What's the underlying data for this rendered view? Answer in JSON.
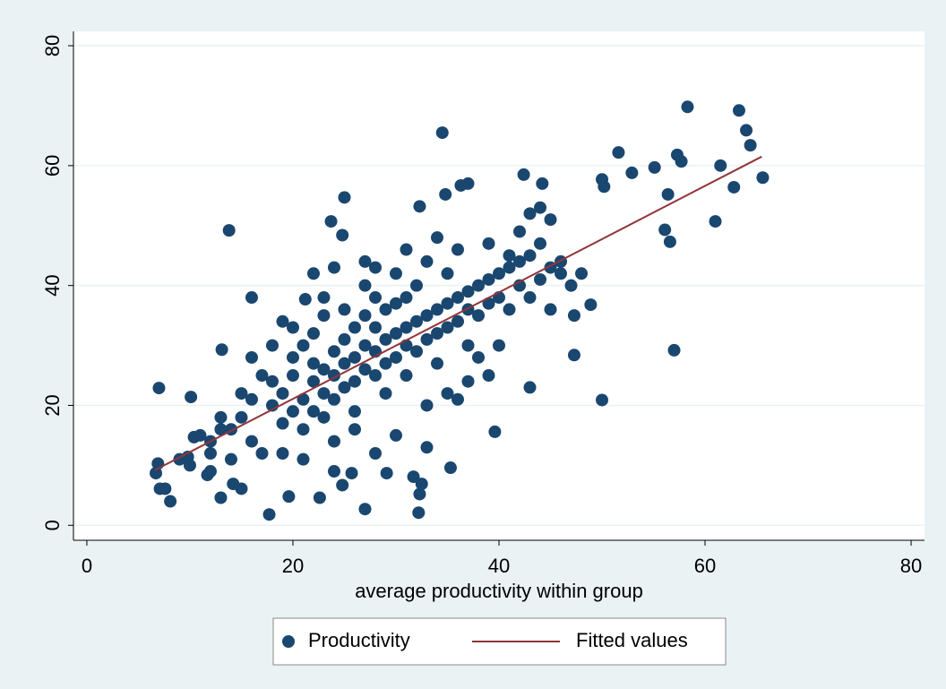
{
  "chart_data": {
    "type": "scatter",
    "xlabel": "average productivity within group",
    "xlim": [
      -1.3,
      81.3
    ],
    "ylim": [
      -2.5,
      82.4
    ],
    "xticks": [
      0,
      20,
      40,
      60,
      80
    ],
    "yticks": [
      0,
      20,
      40,
      60,
      80
    ],
    "grid": true,
    "legend": "bottom",
    "series": [
      {
        "name": "Productivity",
        "color": "#1a476f",
        "x": [
          7.0,
          6.9,
          6.7,
          7.1,
          7.6,
          8.1,
          13.8,
          34.5,
          58.3,
          63.3,
          64,
          64.4,
          65.6,
          61.5,
          62.8,
          61,
          57,
          50,
          51.6,
          52.9,
          57.3,
          57.7,
          55.1,
          56.4,
          56.1,
          56.6,
          50,
          50.2,
          48.9,
          47.3,
          47.3,
          43,
          39.6,
          35.3,
          32.2,
          27,
          19.6,
          17.7,
          25,
          23.7,
          24.8,
          32.3,
          34.8,
          36.3,
          37,
          42.4,
          44.2,
          16,
          21.2,
          13.1,
          10.1,
          9.8,
          10.4,
          13,
          15,
          11.7,
          14.2,
          22.6,
          24.8,
          25.7,
          29.1,
          32.5,
          32.3,
          31.7,
          18,
          18,
          19,
          19,
          20,
          20,
          20,
          21,
          21,
          21,
          22,
          22,
          22,
          22,
          23,
          23,
          23,
          23,
          24,
          24,
          24,
          24,
          25,
          25,
          25,
          25,
          26,
          26,
          26,
          26,
          27,
          27,
          27,
          27,
          28,
          28,
          28,
          28,
          29,
          29,
          29,
          29,
          30,
          30,
          30,
          30,
          31,
          31,
          31,
          31,
          32,
          32,
          32,
          33,
          33,
          33,
          34,
          34,
          34,
          35,
          35,
          35,
          36,
          36,
          37,
          37,
          37,
          38,
          38,
          39,
          39,
          40,
          40,
          41,
          41,
          42,
          42,
          43,
          43,
          44,
          44,
          45,
          45,
          46,
          46,
          47,
          48,
          15,
          16,
          16,
          17,
          17,
          14,
          13,
          12,
          11,
          10,
          9,
          12,
          14,
          19,
          21,
          24,
          28,
          30,
          26,
          33,
          35,
          36,
          37,
          33,
          38,
          39,
          40,
          22,
          24,
          28,
          31,
          34,
          36,
          39,
          42,
          43,
          44,
          45,
          41,
          19,
          20,
          18,
          23,
          27,
          15,
          16,
          12,
          13
        ],
        "values": [
          22.9,
          10.3,
          8.7,
          6.1,
          6.1,
          4.0,
          49.2,
          65.5,
          69.8,
          69.2,
          65.9,
          63.4,
          58.0,
          60.0,
          56.4,
          50.7,
          29.2,
          20.9,
          62.2,
          58.8,
          61.8,
          60.7,
          59.7,
          55.2,
          49.3,
          47.3,
          57.7,
          56.5,
          36.8,
          35,
          28.4,
          23,
          15.6,
          9.6,
          2.1,
          2.7,
          4.8,
          1.8,
          54.7,
          50.7,
          48.4,
          53.2,
          55.2,
          56.7,
          57,
          58.5,
          57,
          38,
          37.7,
          29.3,
          21.4,
          11.4,
          14.7,
          4.6,
          6.1,
          8.4,
          6.9,
          4.6,
          6.7,
          8.7,
          8.7,
          6.9,
          5.2,
          8.1,
          20,
          24,
          17,
          22,
          19,
          25,
          28,
          21,
          16,
          30,
          24,
          19,
          27,
          32,
          22,
          26,
          18,
          35,
          25,
          29,
          21,
          14,
          27,
          31,
          23,
          36,
          28,
          33,
          24,
          19,
          30,
          35,
          26,
          40,
          29,
          33,
          25,
          38,
          31,
          36,
          27,
          22,
          32,
          37,
          28,
          42,
          33,
          30,
          38,
          25,
          34,
          29,
          40,
          35,
          31,
          44,
          36,
          32,
          27,
          37,
          33,
          42,
          38,
          34,
          39,
          36,
          30,
          40,
          35,
          41,
          37,
          42,
          38,
          43,
          36,
          44,
          40,
          45,
          38,
          41,
          47,
          43,
          36,
          44,
          42,
          40,
          42,
          18,
          21,
          14,
          25,
          12,
          16,
          18,
          12,
          15,
          10,
          11,
          9,
          11,
          12,
          11,
          9,
          12,
          15,
          16,
          20,
          22,
          21,
          24,
          13,
          28,
          25,
          30,
          42,
          43,
          43,
          46,
          48,
          46,
          47,
          49,
          52,
          53,
          51,
          45,
          34,
          33,
          30,
          38,
          44,
          22,
          28,
          14,
          16
        ]
      },
      {
        "name": "Fitted values",
        "color": "#90353b",
        "type": "line",
        "x": [
          6.6,
          65.5
        ],
        "values": [
          9.2,
          61.5
        ]
      }
    ]
  }
}
